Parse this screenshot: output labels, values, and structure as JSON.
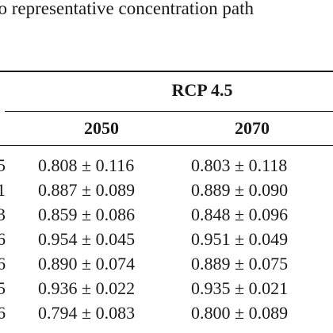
{
  "caption": "vo representative concentration path",
  "header": {
    "group": "RCP 4.5",
    "years": [
      "2050",
      "2070"
    ]
  },
  "rows": [
    {
      "lead": "5",
      "v2050": "0.808 ± 0.116",
      "v2070": "0.803 ± 0.118"
    },
    {
      "lead": "1",
      "v2050": "0.887 ± 0.089",
      "v2070": "0.889 ± 0.090"
    },
    {
      "lead": "3",
      "v2050": "0.859 ± 0.086",
      "v2070": "0.848 ± 0.096"
    },
    {
      "lead": "6",
      "v2050": "0.954 ± 0.045",
      "v2070": "0.951 ± 0.049"
    },
    {
      "lead": "6",
      "v2050": "0.890 ± 0.074",
      "v2070": "0.889 ± 0.075"
    },
    {
      "lead": "5",
      "v2050": "0.936 ± 0.022",
      "v2070": "0.935 ± 0.021"
    },
    {
      "lead": "6",
      "v2050": "0.794 ± 0.083",
      "v2070": "0.800 ± 0.089"
    }
  ]
}
